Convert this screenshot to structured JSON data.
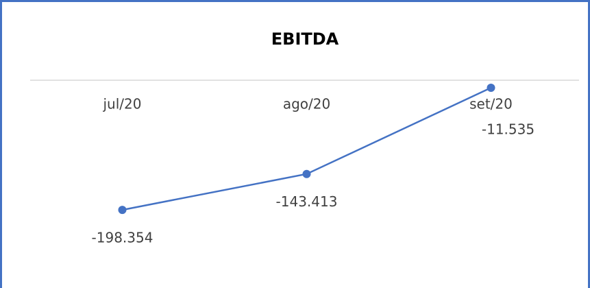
{
  "chart_data": {
    "type": "line",
    "title": "EBITDA",
    "categories": [
      "jul/20",
      "ago/20",
      "set/20"
    ],
    "series": [
      {
        "name": null,
        "color": "#4472c4",
        "values": [
          -198354,
          -143413,
          -11535
        ],
        "value_labels": [
          "-198.354",
          "-143.413",
          "-11.535"
        ]
      }
    ],
    "ylim": [
      -300000,
      0
    ]
  }
}
